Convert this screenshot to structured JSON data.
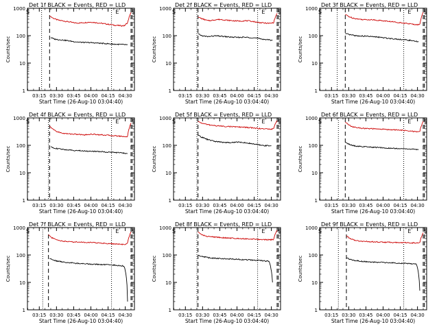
{
  "chart_data": [
    {
      "type": "line",
      "title": "Det 1f BLACK = Events, RED = LLD",
      "ylabel": "Counts/sec",
      "xlabel": "Start Time (26-Aug-10 03:04:40)",
      "yscale": "log",
      "ylim": [
        1,
        1000
      ],
      "xlim": [
        "03:04:40",
        "04:38:00"
      ],
      "x_ticks": [
        "03:15",
        "03:30",
        "03:45",
        "04:00",
        "04:15",
        "04:30"
      ],
      "y_ticks": [
        "1",
        "10",
        "100",
        "1000"
      ],
      "markers": [
        {
          "label": "S",
          "time": "03:05"
        },
        {
          "label": "E",
          "time": "04:23"
        },
        {
          "label": "S",
          "time": "04:37"
        }
      ],
      "dotted_lines": [
        "03:17",
        "04:18"
      ],
      "dashed_lines": [
        "03:24",
        "04:35",
        "04:36"
      ],
      "series": [
        {
          "color": "#cc0000",
          "start": "03:24",
          "end": "04:35",
          "values": [
            520,
            440,
            390,
            360,
            350,
            330,
            320,
            300,
            290,
            290,
            295,
            300,
            310,
            310,
            300,
            290,
            280,
            270,
            260,
            250,
            240,
            235,
            230,
            230,
            300,
            700
          ]
        },
        {
          "color": "#000000",
          "start": "03:25",
          "end": "04:32",
          "values": [
            85,
            75,
            72,
            70,
            68,
            65,
            62,
            60,
            58,
            57,
            56,
            56,
            55,
            54,
            53,
            52,
            51,
            50,
            49,
            48,
            48,
            47,
            47
          ]
        }
      ]
    },
    {
      "type": "line",
      "title": "Det 2f BLACK = Events, RED = LLD",
      "ylabel": "Counts/sec",
      "xlabel": "Start Time (26-Aug-10 03:04:40)",
      "yscale": "log",
      "ylim": [
        1,
        1000
      ],
      "xlim": [
        "03:04:40",
        "04:38:00"
      ],
      "x_ticks": [
        "03:15",
        "03:30",
        "03:45",
        "04:00",
        "04:15",
        "04:30"
      ],
      "y_ticks": [
        "1",
        "10",
        "100",
        "1000"
      ],
      "markers": [
        {
          "label": "S",
          "time": "03:05"
        },
        {
          "label": "E",
          "time": "04:23"
        },
        {
          "label": "S",
          "time": "04:37"
        }
      ],
      "dotted_lines": [
        "03:25",
        "04:18"
      ],
      "dashed_lines": [
        "03:26",
        "04:35",
        "04:36"
      ],
      "series": [
        {
          "color": "#cc0000",
          "start": "03:26",
          "end": "04:35",
          "values": [
            480,
            420,
            380,
            350,
            360,
            380,
            390,
            385,
            370,
            360,
            350,
            345,
            340,
            345,
            350,
            340,
            330,
            310,
            300,
            290,
            285,
            280,
            300,
            650
          ]
        },
        {
          "color": "#000000",
          "start": "03:26",
          "end": "04:31",
          "values": [
            120,
            100,
            95,
            92,
            95,
            98,
            97,
            95,
            92,
            90,
            88,
            87,
            86,
            88,
            87,
            86,
            84,
            82,
            78,
            75,
            72,
            70,
            68
          ]
        }
      ]
    },
    {
      "type": "line",
      "title": "Det 3f BLACK = Events, RED = LLD",
      "ylabel": "Counts/sec",
      "xlabel": "Start Time (26-Aug-10 03:04:40)",
      "yscale": "log",
      "ylim": [
        1,
        1000
      ],
      "xlim": [
        "03:04:40",
        "04:38:00"
      ],
      "x_ticks": [
        "03:15",
        "03:30",
        "03:45",
        "04:00",
        "04:15",
        "04:30"
      ],
      "y_ticks": [
        "1",
        "10",
        "100",
        "1000"
      ],
      "markers": [
        {
          "label": "S",
          "time": "03:05"
        },
        {
          "label": "E",
          "time": "04:23"
        },
        {
          "label": "S",
          "time": "04:37"
        }
      ],
      "dotted_lines": [
        "03:20",
        "04:18"
      ],
      "dashed_lines": [
        "03:27",
        "04:35",
        "04:36"
      ],
      "series": [
        {
          "color": "#cc0000",
          "start": "03:27",
          "end": "04:35",
          "values": [
            600,
            500,
            450,
            420,
            400,
            390,
            380,
            385,
            380,
            370,
            360,
            350,
            340,
            330,
            320,
            310,
            300,
            290,
            280,
            270,
            260,
            255,
            250,
            720
          ]
        },
        {
          "color": "#000000",
          "start": "03:27",
          "end": "04:31",
          "values": [
            120,
            110,
            105,
            100,
            98,
            97,
            96,
            95,
            92,
            90,
            88,
            85,
            82,
            80,
            78,
            76,
            74,
            72,
            70,
            68,
            66,
            62,
            60
          ]
        }
      ]
    },
    {
      "type": "line",
      "title": "Det 4f BLACK = Events, RED = LLD",
      "ylabel": "Counts/sec",
      "xlabel": "Start Time (26-Aug-10 03:04:40)",
      "yscale": "log",
      "ylim": [
        1,
        1000
      ],
      "xlim": [
        "03:04:40",
        "04:38:00"
      ],
      "x_ticks": [
        "03:15",
        "03:30",
        "03:45",
        "04:00",
        "04:15",
        "04:30"
      ],
      "y_ticks": [
        "1",
        "10",
        "100",
        "1000"
      ],
      "markers": [
        {
          "label": "S",
          "time": "03:05"
        },
        {
          "label": "E",
          "time": "04:23"
        },
        {
          "label": "S",
          "time": "04:37"
        }
      ],
      "dotted_lines": [
        "03:23",
        "04:18"
      ],
      "dashed_lines": [
        "03:24",
        "04:35",
        "04:36"
      ],
      "series": [
        {
          "color": "#cc0000",
          "start": "03:24",
          "end": "04:35",
          "values": [
            500,
            380,
            320,
            290,
            270,
            265,
            260,
            255,
            250,
            245,
            240,
            250,
            255,
            250,
            245,
            240,
            235,
            230,
            225,
            220,
            215,
            210,
            205,
            650
          ]
        },
        {
          "color": "#000000",
          "start": "03:25",
          "end": "04:32",
          "values": [
            90,
            80,
            75,
            72,
            70,
            68,
            66,
            65,
            64,
            63,
            62,
            61,
            60,
            60,
            59,
            58,
            57,
            56,
            55,
            54,
            53,
            52,
            50
          ]
        }
      ]
    },
    {
      "type": "line",
      "title": "Det 5f BLACK = Events, RED = LLD",
      "ylabel": "Counts/sec",
      "xlabel": "Start Time (26-Aug-10 03:04:40)",
      "yscale": "log",
      "ylim": [
        1,
        1000
      ],
      "xlim": [
        "03:04:40",
        "04:38:00"
      ],
      "x_ticks": [
        "03:15",
        "03:30",
        "03:45",
        "04:00",
        "04:15",
        "04:30"
      ],
      "y_ticks": [
        "1",
        "10",
        "100",
        "1000"
      ],
      "markers": [
        {
          "label": "S",
          "time": "03:05"
        },
        {
          "label": "E",
          "time": "04:23"
        },
        {
          "label": "S",
          "time": "04:37"
        }
      ],
      "dotted_lines": [
        "03:25",
        "04:18"
      ],
      "dashed_lines": [
        "03:26",
        "04:35",
        "04:36"
      ],
      "series": [
        {
          "color": "#cc0000",
          "start": "03:26",
          "end": "04:35",
          "values": [
            750,
            650,
            600,
            560,
            540,
            520,
            510,
            500,
            490,
            485,
            480,
            470,
            465,
            460,
            450,
            440,
            430,
            420,
            410,
            400,
            395,
            390,
            400,
            800
          ]
        },
        {
          "color": "#000000",
          "start": "03:26",
          "end": "04:30",
          "values": [
            240,
            200,
            180,
            160,
            150,
            140,
            135,
            130,
            128,
            126,
            125,
            130,
            132,
            128,
            125,
            120,
            115,
            110,
            105,
            100,
            98,
            97,
            96
          ]
        }
      ]
    },
    {
      "type": "line",
      "title": "Det 6f BLACK = Events, RED = LLD",
      "ylabel": "Counts/sec",
      "xlabel": "Start Time (26-Aug-10 03:04:40)",
      "yscale": "log",
      "ylim": [
        1,
        1000
      ],
      "xlim": [
        "03:04:40",
        "04:38:00"
      ],
      "x_ticks": [
        "03:15",
        "03:30",
        "03:45",
        "04:00",
        "04:15",
        "04:30"
      ],
      "y_ticks": [
        "1",
        "10",
        "100",
        "1000"
      ],
      "markers": [
        {
          "label": "S",
          "time": "03:05"
        },
        {
          "label": "E",
          "time": "04:23"
        },
        {
          "label": "S",
          "time": "04:37"
        }
      ],
      "dotted_lines": [
        "03:21",
        "04:18"
      ],
      "dashed_lines": [
        "03:27",
        "04:35",
        "04:36"
      ],
      "series": [
        {
          "color": "#cc0000",
          "start": "03:27",
          "end": "04:35",
          "values": [
            700,
            550,
            480,
            450,
            430,
            420,
            410,
            405,
            400,
            395,
            390,
            385,
            380,
            375,
            370,
            365,
            360,
            350,
            340,
            330,
            320,
            315,
            320,
            750
          ]
        },
        {
          "color": "#000000",
          "start": "03:27",
          "end": "04:31",
          "values": [
            130,
            110,
            100,
            95,
            92,
            90,
            88,
            86,
            85,
            84,
            83,
            82,
            80,
            79,
            78,
            77,
            76,
            75,
            74,
            73,
            72,
            71,
            70
          ]
        }
      ]
    },
    {
      "type": "line",
      "title": "Det 7f BLACK = Events, RED = LLD",
      "ylabel": "Counts/sec",
      "xlabel": "Start Time (26-Aug-10 03:04:40)",
      "yscale": "log",
      "ylim": [
        1,
        1000
      ],
      "xlim": [
        "03:04:40",
        "04:38:00"
      ],
      "x_ticks": [
        "03:15",
        "03:30",
        "03:45",
        "04:00",
        "04:15",
        "04:30"
      ],
      "y_ticks": [
        "1",
        "10",
        "100",
        "1000"
      ],
      "markers": [
        {
          "label": "S",
          "time": "03:05"
        },
        {
          "label": "E",
          "time": "04:23"
        },
        {
          "label": "S",
          "time": "04:37"
        }
      ],
      "dotted_lines": [
        "03:18",
        "04:18"
      ],
      "dashed_lines": [
        "03:23",
        "04:35",
        "04:36"
      ],
      "series": [
        {
          "color": "#cc0000",
          "start": "03:23",
          "end": "04:35",
          "values": [
            550,
            420,
            370,
            340,
            320,
            310,
            305,
            300,
            300,
            295,
            290,
            288,
            285,
            280,
            275,
            270,
            265,
            260,
            255,
            250,
            245,
            240,
            260,
            700
          ]
        },
        {
          "color": "#000000",
          "start": "03:24",
          "end": "04:32",
          "values": [
            75,
            65,
            60,
            58,
            55,
            53,
            52,
            50,
            49,
            48,
            48,
            47,
            46,
            46,
            45,
            45,
            44,
            44,
            43,
            42,
            41,
            40,
            2
          ]
        }
      ]
    },
    {
      "type": "line",
      "title": "Det 8f BLACK = Events, RED = LLD",
      "ylabel": "Counts/sec",
      "xlabel": "Start Time (26-Aug-10 03:04:40)",
      "yscale": "log",
      "ylim": [
        1,
        1000
      ],
      "xlim": [
        "03:04:40",
        "04:38:00"
      ],
      "x_ticks": [
        "03:15",
        "03:30",
        "03:45",
        "04:00",
        "04:15",
        "04:30"
      ],
      "y_ticks": [
        "1",
        "10",
        "100",
        "1000"
      ],
      "markers": [
        {
          "label": "S",
          "time": "03:05"
        },
        {
          "label": "E",
          "time": "04:23"
        },
        {
          "label": "S",
          "time": "04:37"
        }
      ],
      "dotted_lines": [
        "03:25",
        "04:18"
      ],
      "dashed_lines": [
        "03:26",
        "04:35",
        "04:36"
      ],
      "series": [
        {
          "color": "#cc0000",
          "start": "03:26",
          "end": "04:35",
          "values": [
            700,
            550,
            500,
            470,
            460,
            450,
            440,
            430,
            420,
            415,
            410,
            405,
            400,
            395,
            390,
            385,
            380,
            375,
            370,
            365,
            360,
            355,
            370,
            800
          ]
        },
        {
          "color": "#000000",
          "start": "03:26",
          "end": "04:31",
          "values": [
            100,
            90,
            85,
            80,
            78,
            76,
            75,
            74,
            73,
            72,
            71,
            70,
            69,
            68,
            67,
            66,
            65,
            64,
            63,
            62,
            60,
            58,
            10
          ]
        }
      ]
    },
    {
      "type": "line",
      "title": "Det 9f BLACK = Events, RED = LLD",
      "ylabel": "Counts/sec",
      "xlabel": "Start Time (26-Aug-10 03:04:40)",
      "yscale": "log",
      "ylim": [
        1,
        1000
      ],
      "xlim": [
        "03:04:40",
        "04:38:00"
      ],
      "x_ticks": [
        "03:15",
        "03:30",
        "03:45",
        "04:00",
        "04:15",
        "04:30"
      ],
      "y_ticks": [
        "1",
        "10",
        "100",
        "1000"
      ],
      "markers": [
        {
          "label": "S",
          "time": "03:05"
        },
        {
          "label": "E",
          "time": "04:23"
        },
        {
          "label": "S",
          "time": "04:37"
        }
      ],
      "dotted_lines": [
        "03:21",
        "04:18"
      ],
      "dashed_lines": [
        "03:28",
        "04:35",
        "04:36"
      ],
      "series": [
        {
          "color": "#cc0000",
          "start": "03:28",
          "end": "04:35",
          "values": [
            500,
            400,
            360,
            330,
            320,
            315,
            310,
            305,
            300,
            298,
            296,
            294,
            292,
            290,
            288,
            286,
            284,
            282,
            280,
            278,
            276,
            275,
            290,
            650
          ]
        },
        {
          "color": "#000000",
          "start": "03:28",
          "end": "04:32",
          "values": [
            80,
            70,
            65,
            62,
            60,
            58,
            57,
            56,
            55,
            54,
            54,
            53,
            52,
            52,
            51,
            51,
            50,
            50,
            49,
            48,
            47,
            46,
            5
          ]
        }
      ]
    }
  ]
}
